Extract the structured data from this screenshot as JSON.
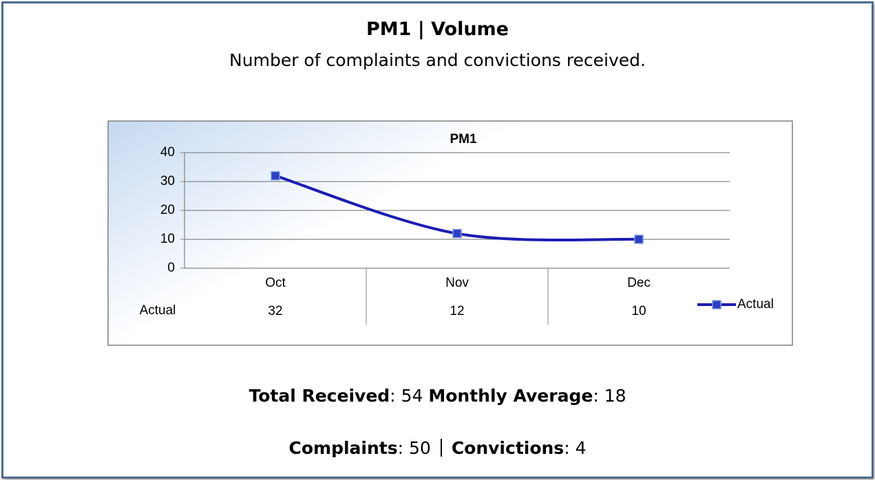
{
  "header": {
    "title": "PM1 | Volume",
    "subtitle": "Number of complaints and convictions received."
  },
  "chart_data": {
    "type": "line",
    "title": "PM1",
    "categories": [
      "Oct",
      "Nov",
      "Dec"
    ],
    "series": [
      {
        "name": "Actual",
        "color": "#1c1cb4",
        "values": [
          32,
          12,
          10
        ]
      }
    ],
    "ylim": [
      0,
      40
    ],
    "yticks": [
      0,
      10,
      20,
      30,
      40
    ],
    "grid": true,
    "legend": "right",
    "smooth": true,
    "data_table": true
  },
  "summary": {
    "lines": [
      [
        {
          "label": "Total Received",
          "value": 54
        },
        {
          "label": "Monthly Average",
          "value": 18
        }
      ],
      [
        {
          "label": "Complaints",
          "value": 50
        },
        {
          "label": "Convictions",
          "value": 4
        }
      ]
    ]
  }
}
